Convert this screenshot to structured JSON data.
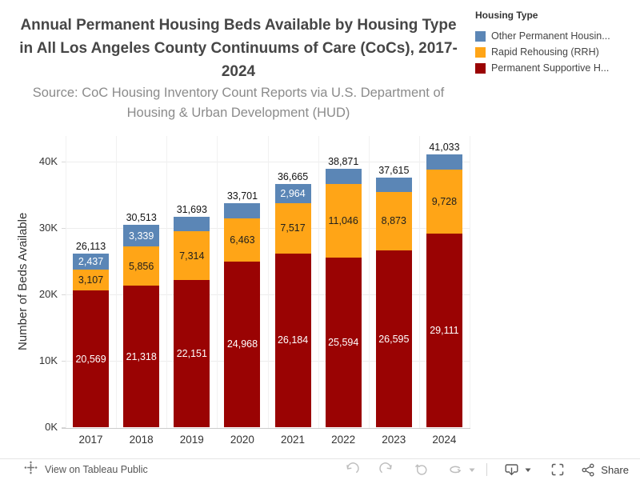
{
  "header": {
    "title_lines": [
      "Annual Permanent Housing Beds Available by Housing Type",
      "in All Los Angeles County Continuums of Care (CoCs), 2017-",
      "2024"
    ],
    "subtitle_lines": [
      "Source: CoC Housing Inventory Count Reports via U.S. Department of",
      "Housing & Urban Development (HUD)"
    ]
  },
  "legend": {
    "title": "Housing Type",
    "items": [
      {
        "label": "Other Permanent Housin...",
        "color": "#5B86B6"
      },
      {
        "label": "Rapid Rehousing (RRH)",
        "color": "#FFA517"
      },
      {
        "label": "Permanent Supportive H...",
        "color": "#9A0303"
      }
    ]
  },
  "chart_data": {
    "type": "bar",
    "stacked": true,
    "title": "Annual Permanent Housing Beds Available by Housing Type in All Los Angeles County Continuums of Care (CoCs), 2017-2024",
    "subtitle": "Source: CoC Housing Inventory Count Reports via U.S. Department of Housing & Urban Development (HUD)",
    "xlabel": "",
    "ylabel": "Number of Beds Available",
    "categories": [
      "2017",
      "2018",
      "2019",
      "2020",
      "2021",
      "2022",
      "2023",
      "2024"
    ],
    "y_ticks": [
      "0K",
      "10K",
      "20K",
      "30K",
      "40K"
    ],
    "y_tick_values": [
      0,
      10000,
      20000,
      30000,
      40000
    ],
    "ylim": [
      0,
      44000
    ],
    "grid": true,
    "legend_position": "top-right",
    "totals": [
      26113,
      30513,
      31693,
      33701,
      36665,
      38871,
      37615,
      41033
    ],
    "series": [
      {
        "key": "psh",
        "name": "Permanent Supportive H...",
        "color": "#9A0303",
        "label_color": "#ffffff",
        "values": [
          20569,
          21318,
          22151,
          24968,
          26184,
          25594,
          26595,
          29111
        ],
        "labels_shown": [
          true,
          true,
          true,
          true,
          true,
          true,
          true,
          true
        ]
      },
      {
        "key": "rrh",
        "name": "Rapid Rehousing (RRH)",
        "color": "#FFA517",
        "label_color": "#1e1e1e",
        "values": [
          3107,
          5856,
          7314,
          6463,
          7517,
          11046,
          8873,
          9728
        ],
        "labels_shown": [
          true,
          true,
          true,
          true,
          true,
          true,
          true,
          true
        ]
      },
      {
        "key": "oph",
        "name": "Other Permanent Housin...",
        "color": "#5B86B6",
        "label_color": "#ffffff",
        "values": [
          2437,
          3339,
          2228,
          2270,
          2964,
          2231,
          2147,
          2194
        ],
        "labels_shown": [
          true,
          true,
          false,
          false,
          true,
          false,
          false,
          false
        ]
      }
    ]
  },
  "toolbar": {
    "view_label": "View on Tableau Public",
    "share_label": "Share",
    "icons": [
      "tableau-logo-icon",
      "undo-icon",
      "redo-icon",
      "replay-icon",
      "refresh-icon",
      "caret-down-icon",
      "download-icon",
      "fullscreen-icon",
      "share-icon"
    ]
  }
}
